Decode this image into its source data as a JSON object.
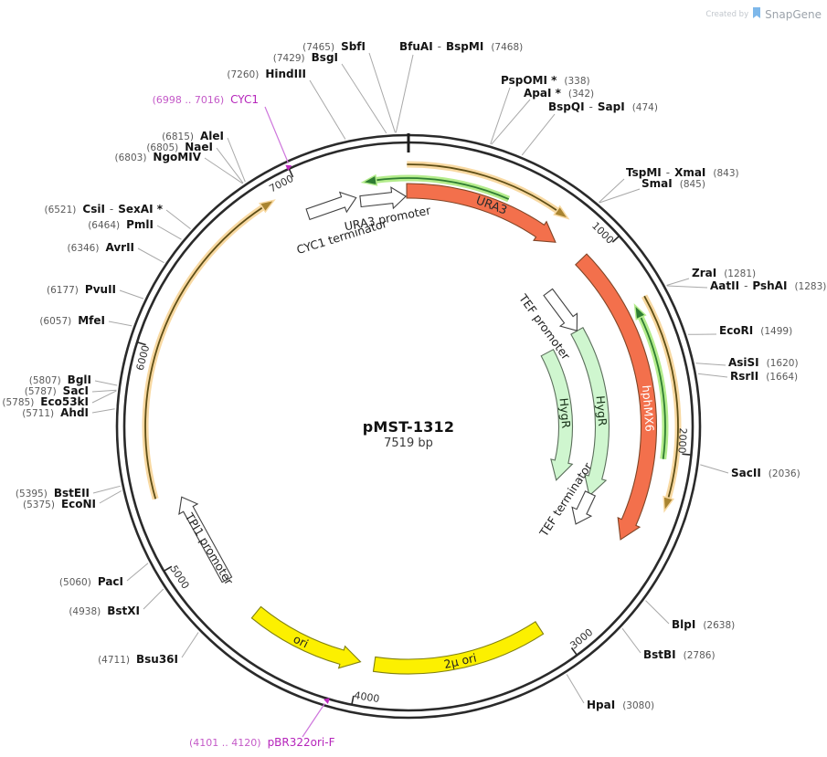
{
  "watermark": {
    "created_by": "Created by",
    "brand": "SnapGene"
  },
  "plasmid": {
    "name": "pMST-1312",
    "size_label": "7519 bp",
    "length_bp": 7519
  },
  "ticks": [
    {
      "bp": 1000,
      "label": "1000"
    },
    {
      "bp": 2000,
      "label": "2000"
    },
    {
      "bp": 3000,
      "label": "3000"
    },
    {
      "bp": 4000,
      "label": "4000"
    },
    {
      "bp": 5000,
      "label": "5000"
    },
    {
      "bp": 6000,
      "label": "6000"
    },
    {
      "bp": 7000,
      "label": "7000"
    }
  ],
  "features": [
    {
      "id": "gold-arc-left",
      "label": "",
      "shape": "thin-arc",
      "color": "gold",
      "start": 5305,
      "end": 6878,
      "head": "end"
    },
    {
      "id": "gold-arc-top",
      "label": "",
      "shape": "thin-arc",
      "color": "gold",
      "start": 7512,
      "end": 783,
      "head": "end"
    },
    {
      "id": "gold-arc-right",
      "label": "",
      "shape": "thin-arc",
      "color": "gold",
      "start": 1275,
      "end": 2262,
      "head": "end"
    },
    {
      "id": "green-arc-top",
      "label": "",
      "shape": "thin-arc",
      "color": "green",
      "start": 7297,
      "end": 497,
      "head": "start"
    },
    {
      "id": "green-arc-right",
      "label": "",
      "shape": "thin-arc",
      "color": "green",
      "start": 1290,
      "end": 2032,
      "head": "start"
    },
    {
      "id": "ura3",
      "label": "URA3",
      "shape": "arc-arrow",
      "color": "orange",
      "start": 7510,
      "end": 806,
      "head": "end",
      "label_bp": 430,
      "label_fill": "#2b2b2b"
    },
    {
      "id": "hphmx6",
      "label": "hphMX6",
      "shape": "arc-arrow",
      "color": "orange",
      "start": 959,
      "end": 2467,
      "head": "end",
      "label_bp": 1790,
      "label_fill": "#ffffff"
    },
    {
      "id": "hygr-outer",
      "label": "HygR",
      "shape": "arc-arrow",
      "color": "paleGreen",
      "start": 1262,
      "end": 2318,
      "head": "end",
      "label_bp": 1783,
      "label_fill": "#173017"
    },
    {
      "id": "hygr-inner",
      "label": "HygR",
      "shape": "arc-arrow",
      "color": "paleGreen",
      "start": 1295,
      "end": 2297,
      "head": "end",
      "label_bp": 1778,
      "label_fill": "#173017"
    },
    {
      "id": "2u-ori",
      "label": "2µ ori",
      "shape": "arc-band",
      "color": "yellow",
      "start": 3070,
      "end": 3930,
      "head": "none",
      "label_bp": 3500,
      "label_fill": "#1f1f1f"
    },
    {
      "id": "ori",
      "label": "ori",
      "shape": "arc-arrow",
      "color": "yellow",
      "start": 4000,
      "end": 4580,
      "head": "start",
      "label_bp": 4315,
      "label_fill": "#1f1f1f"
    },
    {
      "id": "cyc1-terminator",
      "label": "CYC1 terminator",
      "shape": "straight-arrow",
      "color": "white",
      "start": 6990,
      "end": 7250
    },
    {
      "id": "ura3-promoter",
      "label": "URA3 promoter",
      "shape": "straight-arrow",
      "color": "white",
      "start": 7268,
      "end": 7505
    },
    {
      "id": "tef-promoter",
      "label": "TEF promoter",
      "shape": "straight-arrow",
      "color": "white",
      "start": 963,
      "end": 1261
    },
    {
      "id": "tef-terminator",
      "label": "TEF terminator",
      "shape": "straight-arrow",
      "color": "white",
      "start": 2303,
      "end": 2512
    },
    {
      "id": "tpi1-promoter",
      "label": "TPI1 promoter",
      "shape": "straight-arrow",
      "color": "white",
      "start": 4800,
      "end": 5278
    }
  ],
  "primers": [
    {
      "id": "cyc1",
      "name": "CYC1",
      "pos_text": "(6998 .. 7016)",
      "start": 6998,
      "end": 7016,
      "head": "end"
    },
    {
      "id": "pbr322ori-f",
      "name": "pBR322ori-F",
      "pos_text": "(4101 .. 4120)",
      "start": 4101,
      "end": 4120,
      "head": "end"
    }
  ],
  "sites": [
    {
      "name": "PspOMI *",
      "pos": "(338)",
      "bp": 338,
      "side": "right"
    },
    {
      "name": "ApaI *",
      "pos": "(342)",
      "bp": 342,
      "side": "right"
    },
    {
      "name": "BspQI - SapI",
      "pos": "(474)",
      "bp": 474,
      "side": "right"
    },
    {
      "name": "TspMI - XmaI",
      "pos": "(843)",
      "bp": 843,
      "side": "right"
    },
    {
      "name": "SmaI",
      "pos": "(845)",
      "bp": 845,
      "side": "right"
    },
    {
      "name": "ZraI",
      "pos": "(1281)",
      "bp": 1281,
      "side": "right"
    },
    {
      "name": "AatII - PshAI",
      "pos": "(1283)",
      "bp": 1283,
      "side": "right"
    },
    {
      "name": "EcoRI",
      "pos": "(1499)",
      "bp": 1499,
      "side": "right"
    },
    {
      "name": "AsiSI",
      "pos": "(1620)",
      "bp": 1620,
      "side": "right"
    },
    {
      "name": "RsrII",
      "pos": "(1664)",
      "bp": 1664,
      "side": "right"
    },
    {
      "name": "SacII",
      "pos": "(2036)",
      "bp": 2036,
      "side": "right"
    },
    {
      "name": "BlpI",
      "pos": "(2638)",
      "bp": 2638,
      "side": "right"
    },
    {
      "name": "BstBI",
      "pos": "(2786)",
      "bp": 2786,
      "side": "right"
    },
    {
      "name": "HpaI",
      "pos": "(3080)",
      "bp": 3080,
      "side": "right"
    },
    {
      "name": "Bsu36I",
      "pos": "(4711)",
      "bp": 4711,
      "side": "left"
    },
    {
      "name": "BstXI",
      "pos": "(4938)",
      "bp": 4938,
      "side": "left"
    },
    {
      "name": "PacI",
      "pos": "(5060)",
      "bp": 5060,
      "side": "left"
    },
    {
      "name": "EcoNI",
      "pos": "(5375)",
      "bp": 5375,
      "side": "left"
    },
    {
      "name": "BstEII",
      "pos": "(5395)",
      "bp": 5395,
      "side": "left"
    },
    {
      "name": "AhdI",
      "pos": "(5711)",
      "bp": 5711,
      "side": "left"
    },
    {
      "name": "Eco53kI",
      "pos": "(5785)",
      "bp": 5785,
      "side": "left"
    },
    {
      "name": "SacI",
      "pos": "(5787)",
      "bp": 5787,
      "side": "left"
    },
    {
      "name": "BglI",
      "pos": "(5807)",
      "bp": 5807,
      "side": "left"
    },
    {
      "name": "MfeI",
      "pos": "(6057)",
      "bp": 6057,
      "side": "left"
    },
    {
      "name": "PvuII",
      "pos": "(6177)",
      "bp": 6177,
      "side": "left"
    },
    {
      "name": "AvrII",
      "pos": "(6346)",
      "bp": 6346,
      "side": "left"
    },
    {
      "name": "PmlI",
      "pos": "(6464)",
      "bp": 6464,
      "side": "left"
    },
    {
      "name": "CsiI - SexAI *",
      "pos": "(6521)",
      "bp": 6521,
      "side": "left"
    },
    {
      "name": "NgoMIV",
      "pos": "(6803)",
      "bp": 6803,
      "side": "left"
    },
    {
      "name": "NaeI",
      "pos": "(6805)",
      "bp": 6805,
      "side": "left"
    },
    {
      "name": "AleI",
      "pos": "(6815)",
      "bp": 6815,
      "side": "left"
    },
    {
      "name": "HindIII",
      "pos": "(7260)",
      "bp": 7260,
      "side": "left"
    },
    {
      "name": "BsgI",
      "pos": "(7429)",
      "bp": 7429,
      "side": "left"
    },
    {
      "name": "SbfI",
      "pos": "(7465)",
      "bp": 7465,
      "side": "left"
    },
    {
      "name": "BfuAI - BspMI",
      "pos": "(7468)",
      "bp": 7468,
      "side": "right"
    }
  ],
  "colors": {
    "ring": "#2a2a2a",
    "leader": "#a8a8a8",
    "site_name": "#141414",
    "site_pos": "#5a5a5a",
    "tick_label": "#2f2f2f",
    "orange": {
      "fill": "#F3704C",
      "stroke": "#7F4426"
    },
    "paleGreen": {
      "fill": "#CFF6CF",
      "stroke": "#5B6E5B"
    },
    "yellow": {
      "fill": "#FCF000",
      "stroke": "#80800F"
    },
    "white": {
      "fill": "#FFFFFF",
      "stroke": "#404040"
    },
    "gold": {
      "band": "#F8D9A2",
      "line": "#5E4E16",
      "head": "#A98430"
    },
    "green": {
      "band": "#B4EC8C",
      "line": "#2F7D32",
      "head": "#2F7D32"
    },
    "primer": {
      "name": "#B524BB",
      "pos": "#C45AC8",
      "leader": "#CE76DC",
      "mark": "#BE29BE"
    },
    "logo_blue": "#7EB8EA"
  }
}
